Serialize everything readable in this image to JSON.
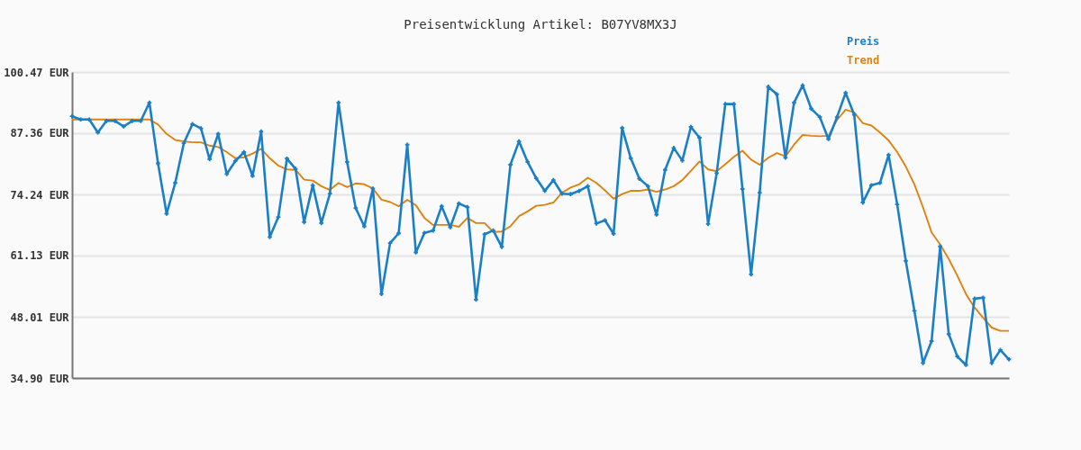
{
  "chart_data": {
    "type": "line",
    "title": "Preisentwicklung Artikel: B07YV8MX3J",
    "categories": [
      null,
      null,
      null,
      null,
      null,
      null,
      null,
      null,
      null,
      null,
      null,
      null,
      null,
      null,
      null,
      null,
      null,
      null,
      null,
      null,
      null,
      null,
      null,
      null,
      null,
      null,
      null,
      null,
      null,
      null,
      null,
      null,
      null,
      null,
      null,
      null,
      null,
      null,
      null,
      null,
      null,
      null,
      null,
      null,
      null,
      null,
      null,
      null,
      null,
      null,
      null,
      null,
      null,
      null,
      null,
      null,
      null,
      null,
      null,
      null,
      null,
      null,
      null,
      null,
      null,
      null,
      null,
      null,
      null,
      null,
      null,
      null,
      null,
      null,
      null,
      null,
      null,
      null,
      null,
      null,
      null,
      null,
      null,
      null,
      null,
      null,
      null,
      null,
      null,
      null,
      null,
      null,
      null,
      null,
      null,
      null,
      null,
      null,
      null,
      null,
      null,
      null,
      null,
      null,
      null,
      null,
      null,
      null,
      null,
      null
    ],
    "series": [
      {
        "name": "Preis",
        "color": "#1a7fc7",
        "marker": "cross",
        "values": [
          91.0,
          90.3,
          90.3,
          87.5,
          90.0,
          90.0,
          88.8,
          90.0,
          90.0,
          93.9,
          80.9,
          70.1,
          76.7,
          85.2,
          89.3,
          88.4,
          81.8,
          87.2,
          78.6,
          81.4,
          83.3,
          78.2,
          87.7,
          65.1,
          69.4,
          81.9,
          79.7,
          68.3,
          76.2,
          68.1,
          74.4,
          93.9,
          81.2,
          71.3,
          67.4,
          75.5,
          52.9,
          63.8,
          65.9,
          84.9,
          61.8,
          66.0,
          66.5,
          71.7,
          67.2,
          72.3,
          71.5,
          51.7,
          65.7,
          66.5,
          63.0,
          80.6,
          85.6,
          81.2,
          77.7,
          75.0,
          77.3,
          74.4,
          74.3,
          75.0,
          76.0,
          68.0,
          68.7,
          65.8,
          88.5,
          82.0,
          77.6,
          76.0,
          69.9,
          79.5,
          84.2,
          81.5,
          88.7,
          86.4,
          67.9,
          78.8,
          93.6,
          93.6,
          75.4,
          57.1,
          74.6,
          97.3,
          95.7,
          82.1,
          93.9,
          97.6,
          92.6,
          90.8,
          86.1,
          90.8,
          96.0,
          91.3,
          72.5,
          76.2,
          76.7,
          82.7,
          72.1,
          60.0,
          49.3,
          38.1,
          42.8,
          63.1,
          44.3,
          39.5,
          37.7,
          51.9,
          52.1,
          38.1,
          40.9,
          38.9
        ]
      },
      {
        "name": "Trend",
        "color": "#e0820f",
        "marker": "none",
        "values": [
          90.3,
          90.3,
          90.3,
          90.3,
          90.3,
          90.3,
          90.3,
          90.3,
          90.3,
          90.3,
          89.2,
          87.2,
          85.9,
          85.6,
          85.4,
          85.4,
          84.7,
          84.4,
          83.3,
          82.0,
          82.2,
          83.0,
          84.0,
          82.0,
          80.4,
          79.6,
          79.5,
          77.4,
          77.2,
          76.0,
          75.2,
          76.7,
          75.8,
          76.6,
          76.4,
          75.5,
          73.1,
          72.6,
          71.7,
          73.1,
          71.9,
          69.2,
          67.7,
          67.7,
          67.7,
          67.3,
          69.2,
          68.1,
          68.1,
          66.2,
          66.3,
          67.4,
          69.6,
          70.6,
          71.8,
          72.0,
          72.5,
          74.6,
          75.7,
          76.4,
          77.8,
          76.7,
          75.1,
          73.3,
          74.3,
          75.0,
          75.0,
          75.3,
          74.8,
          75.3,
          76.0,
          77.3,
          79.3,
          81.3,
          79.6,
          79.2,
          80.7,
          82.3,
          83.6,
          81.7,
          80.6,
          82.1,
          83.1,
          82.4,
          84.9,
          87.0,
          86.8,
          86.7,
          86.8,
          90.2,
          92.4,
          91.8,
          89.5,
          89.0,
          87.5,
          85.8,
          83.3,
          80.2,
          76.4,
          71.5,
          66.1,
          63.5,
          60.4,
          56.8,
          52.9,
          50.0,
          47.8,
          45.7,
          45.0,
          45.0
        ]
      }
    ],
    "ylim": [
      34.9,
      100.47
    ],
    "yticks": [
      {
        "value": 34.9,
        "label": "34.90 EUR"
      },
      {
        "value": 48.01,
        "label": "48.01 EUR"
      },
      {
        "value": 61.13,
        "label": "61.13 EUR"
      },
      {
        "value": 74.24,
        "label": "74.24 EUR"
      },
      {
        "value": 87.36,
        "label": "87.36 EUR"
      },
      {
        "value": 100.47,
        "label": "100.47 EUR"
      }
    ],
    "grid": "y",
    "legend": "top right",
    "tick_labels": "y"
  }
}
